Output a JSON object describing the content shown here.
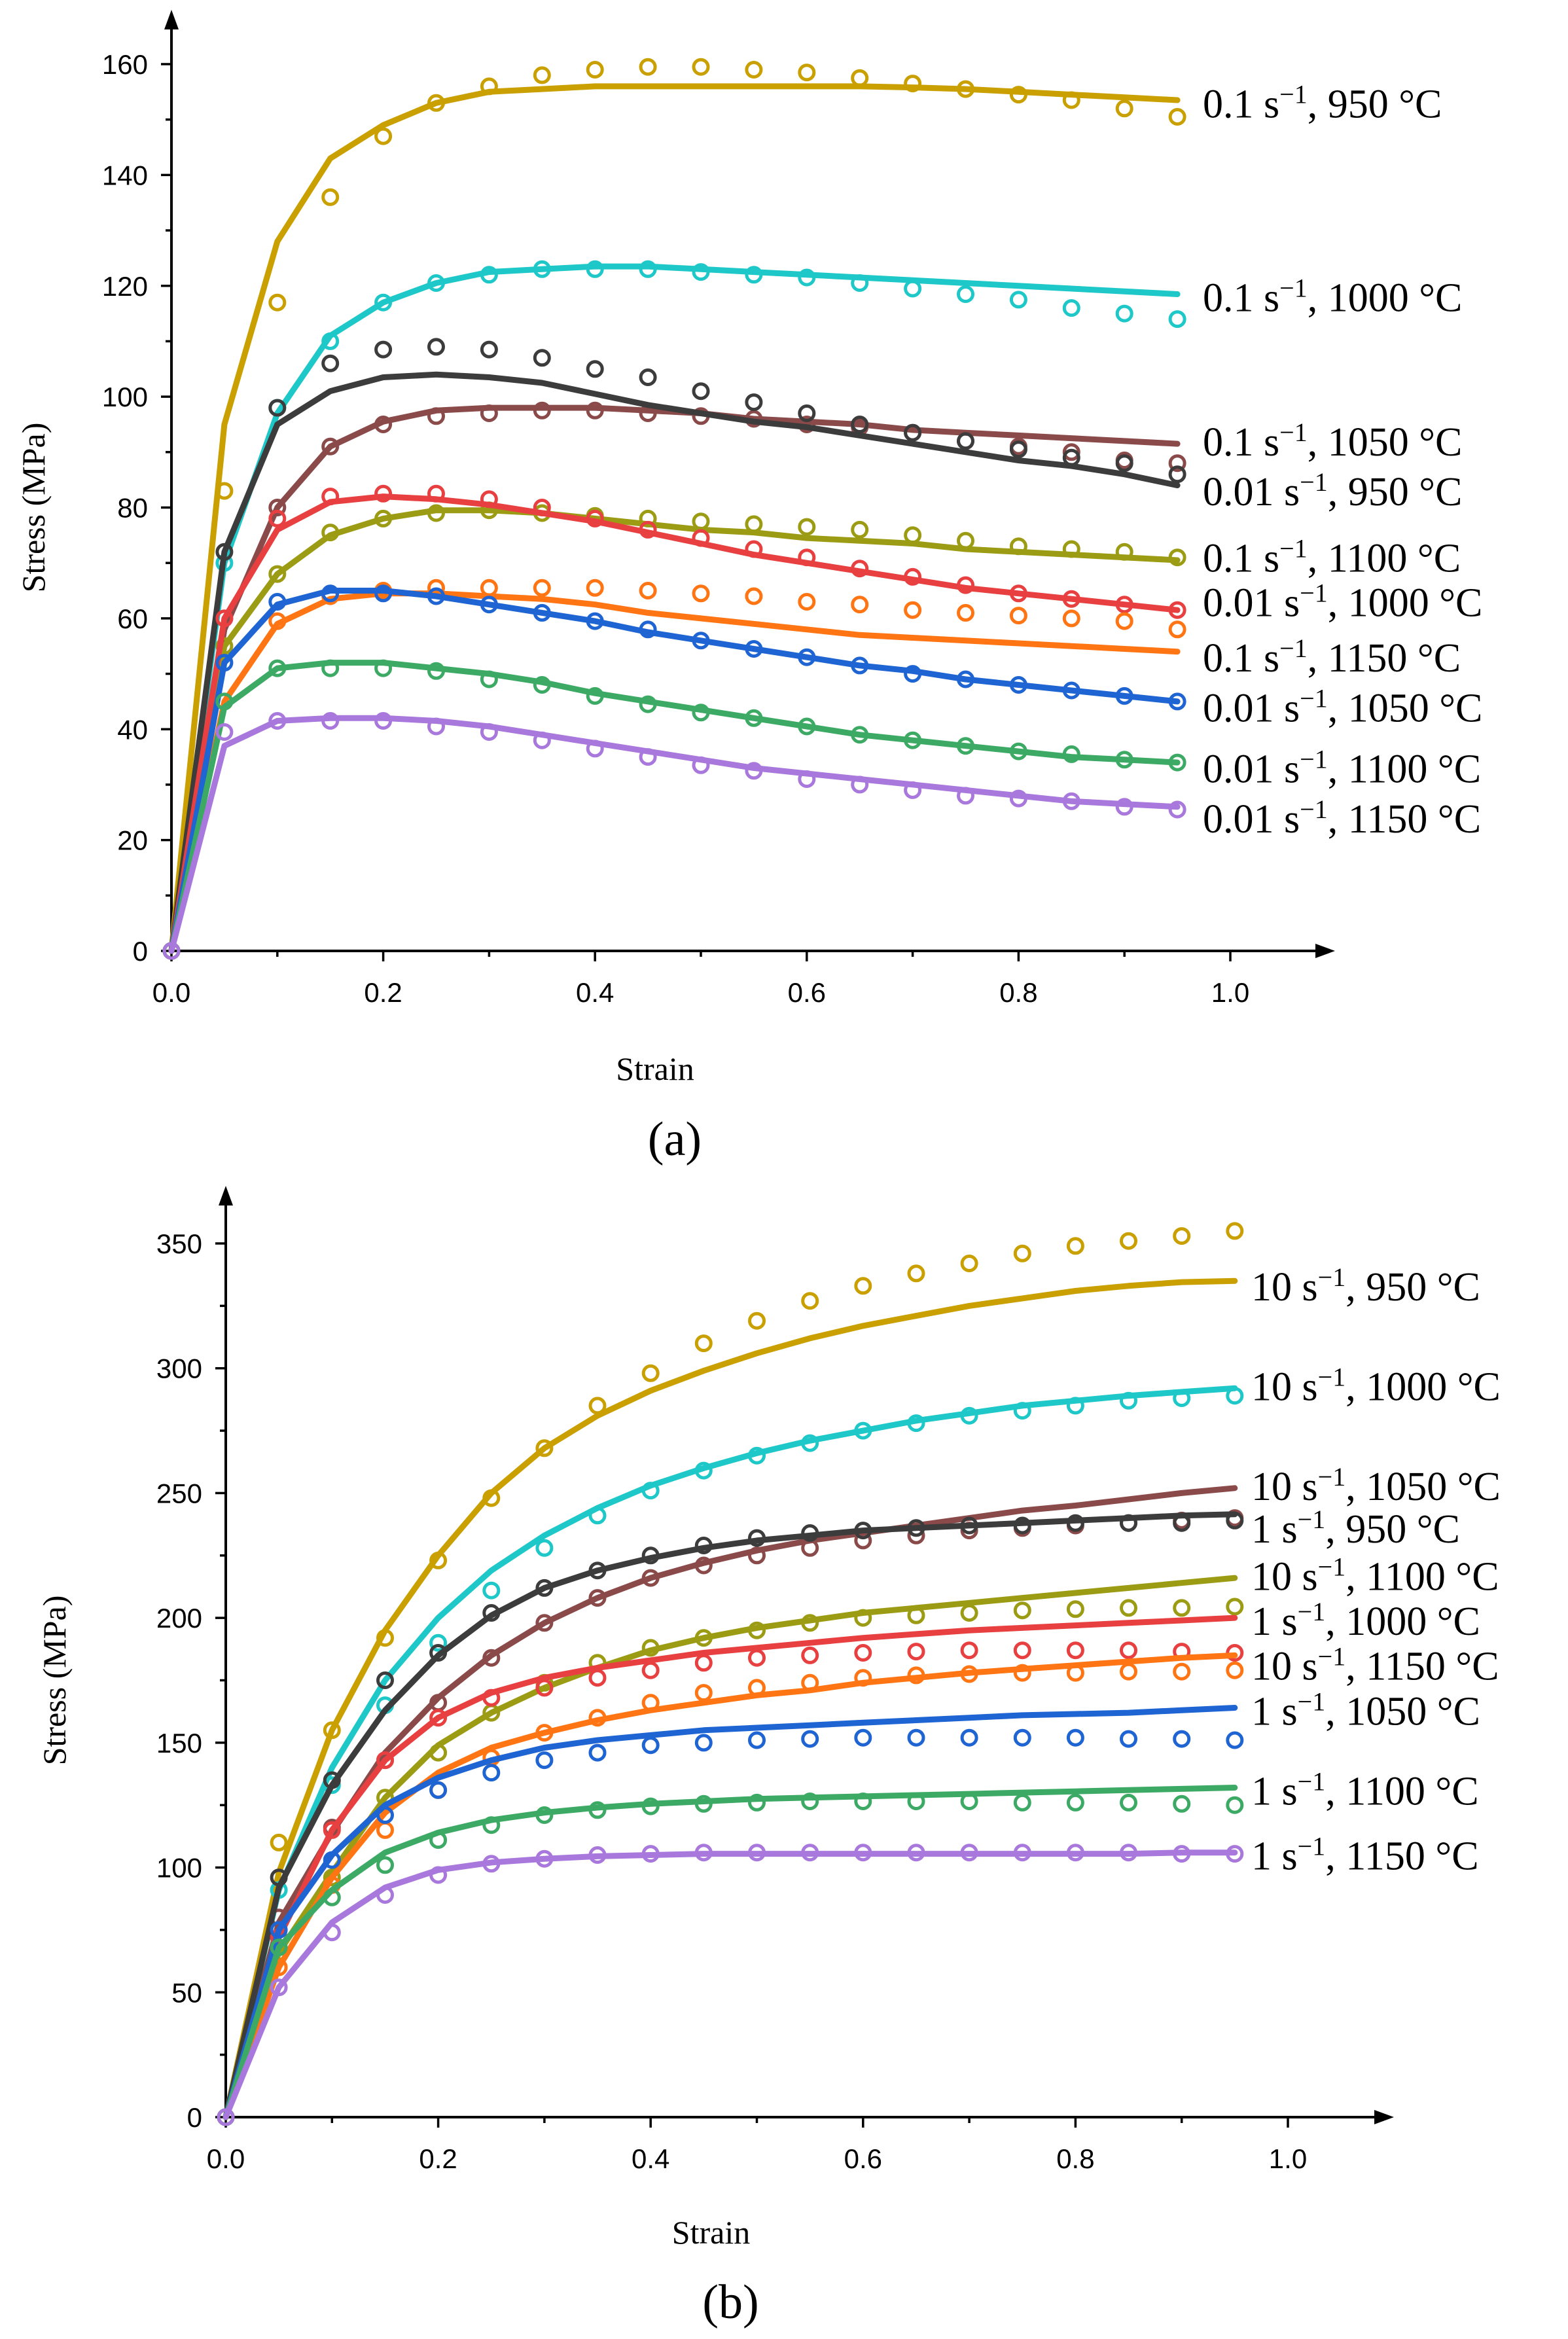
{
  "chart_data": [
    {
      "type": "line",
      "panel_label": "(a)",
      "xlabel": "Strain",
      "ylabel": "Stress (MPa)",
      "xlim": [
        0,
        1.0
      ],
      "ylim": [
        0,
        160
      ],
      "xticks": [
        0,
        0.2,
        0.4,
        0.6,
        0.8,
        1.0
      ],
      "yticks": [
        0,
        20,
        40,
        60,
        80,
        100,
        120,
        140,
        160
      ],
      "xtick_labels": [
        "0.0",
        "0.2",
        "0.4",
        "0.6",
        "0.8",
        "1.0"
      ],
      "ytick_labels": [
        "0",
        "20",
        "40",
        "60",
        "80",
        "100",
        "120",
        "140",
        "160"
      ],
      "exp_x": [
        0,
        0.05,
        0.1,
        0.15,
        0.2,
        0.25,
        0.3,
        0.35,
        0.4,
        0.45,
        0.5,
        0.55,
        0.6,
        0.65,
        0.7,
        0.75,
        0.8,
        0.85,
        0.9,
        0.95
      ],
      "fit_x": [
        0,
        0.05,
        0.1,
        0.15,
        0.2,
        0.25,
        0.3,
        0.35,
        0.4,
        0.45,
        0.5,
        0.55,
        0.6,
        0.65,
        0.7,
        0.75,
        0.8,
        0.85,
        0.9,
        0.95
      ],
      "series": [
        {
          "name": "0.1 s⁻¹, 950 °C",
          "color": "#C9A000",
          "label_y": 153,
          "exp": [
            0,
            83,
            117,
            136,
            147,
            153,
            156,
            158,
            159,
            159.5,
            159.5,
            159,
            158.5,
            157.5,
            156.5,
            155.5,
            154.5,
            153.5,
            152,
            150.5
          ],
          "fit": [
            0,
            95,
            128,
            143,
            149,
            153,
            155,
            155.5,
            156,
            156,
            156,
            156,
            156,
            156,
            155.8,
            155.5,
            155,
            154.5,
            154,
            153.5
          ]
        },
        {
          "name": "0.1 s⁻¹, 1000 °C",
          "color": "#1EC8C8",
          "label_y": 118,
          "exp": [
            0,
            70,
            98,
            110,
            117,
            120.5,
            122,
            123,
            123,
            123,
            122.5,
            122,
            121.5,
            120.5,
            119.5,
            118.5,
            117.5,
            116,
            115,
            114
          ],
          "fit": [
            0,
            70,
            97,
            111,
            117,
            120.5,
            122.5,
            123,
            123.5,
            123.5,
            123,
            122.5,
            122,
            121.5,
            121,
            120.5,
            120,
            119.5,
            119,
            118.5
          ]
        },
        {
          "name": "0.1 s⁻¹, 1050 °C",
          "color": "#8B4A4A",
          "label_y": 92,
          "exp": [
            0,
            60,
            80,
            91,
            95,
            96.5,
            97,
            97.5,
            97.5,
            97,
            96.5,
            96,
            95,
            94.5,
            93.5,
            92,
            91,
            90,
            88.5,
            88
          ],
          "fit": [
            0,
            58,
            80,
            91,
            95.5,
            97.5,
            98,
            98,
            98,
            97.5,
            97,
            96,
            95.5,
            95,
            94,
            93.5,
            93,
            92.5,
            92,
            91.5
          ]
        },
        {
          "name": "0.01 s⁻¹, 950 °C",
          "color": "#3C3C3C",
          "label_y": 83,
          "exp": [
            0,
            72,
            98,
            106,
            108.5,
            109,
            108.5,
            107,
            105,
            103.5,
            101,
            99,
            97,
            95,
            93.5,
            92,
            90.5,
            89,
            88,
            86
          ],
          "fit": [
            0,
            72,
            95,
            101,
            103.5,
            104,
            103.5,
            102.5,
            100.5,
            98.5,
            97,
            95.5,
            94.5,
            93,
            91.5,
            90,
            88.5,
            87.5,
            86,
            84
          ]
        },
        {
          "name": "0.1 s⁻¹, 1100 °C",
          "color": "#9C9C14",
          "label_y": 71,
          "exp": [
            0,
            55,
            68,
            75.5,
            78,
            79,
            79.5,
            79,
            78.5,
            78,
            77.5,
            77,
            76.5,
            76,
            75,
            74,
            73,
            72.5,
            72,
            71
          ],
          "fit": [
            0,
            55,
            68,
            75,
            78,
            79.5,
            79.5,
            79,
            78,
            77,
            76,
            75.5,
            74.5,
            74,
            73.5,
            72.5,
            72,
            71.5,
            71,
            70.5
          ]
        },
        {
          "name": "0.01 s⁻¹, 1000 °C",
          "color": "#E84040",
          "label_y": 63,
          "exp": [
            0,
            60,
            78,
            82,
            82.5,
            82.5,
            81.5,
            80,
            78,
            76,
            74.5,
            72.5,
            71,
            69,
            67.5,
            66,
            64.5,
            63.5,
            62.5,
            61.5
          ],
          "fit": [
            0,
            60,
            76,
            81,
            82,
            81.5,
            80.5,
            79,
            77.5,
            75.5,
            73.5,
            71.5,
            70,
            68.5,
            67,
            65.5,
            64.5,
            63.5,
            62.5,
            61.5
          ]
        },
        {
          "name": "0.1 s⁻¹, 1150 °C",
          "color": "#FF7514",
          "label_y": 53,
          "exp": [
            0,
            45,
            59.5,
            64,
            65,
            65.5,
            65.5,
            65.5,
            65.5,
            65,
            64.5,
            64,
            63,
            62.5,
            61.5,
            61,
            60.5,
            60,
            59.5,
            58
          ],
          "fit": [
            0,
            45,
            59,
            63.5,
            64.5,
            64.5,
            64,
            63.5,
            62.5,
            61,
            60,
            59,
            58,
            57,
            56.5,
            56,
            55.5,
            55,
            54.5,
            54
          ]
        },
        {
          "name": "0.01 s⁻¹, 1050 °C",
          "color": "#1E64D2",
          "label_y": 44,
          "exp": [
            0,
            52,
            63,
            64.5,
            64.5,
            64,
            62.5,
            61,
            59.5,
            58,
            56,
            54.5,
            53,
            51.5,
            50,
            49,
            48,
            47,
            46,
            45
          ],
          "fit": [
            0,
            52,
            62.5,
            65,
            65,
            64,
            62.5,
            61,
            59.5,
            57.5,
            56,
            54.5,
            53,
            51.5,
            50.5,
            49,
            48,
            47,
            46,
            45
          ]
        },
        {
          "name": "0.01 s⁻¹, 1100 °C",
          "color": "#3CAA64",
          "label_y": 33,
          "exp": [
            0,
            45,
            51,
            51,
            51,
            50.5,
            49,
            48,
            46,
            44.5,
            43,
            42,
            40.5,
            39,
            38,
            37,
            36,
            35.5,
            34.5,
            34
          ],
          "fit": [
            0,
            44,
            51,
            52,
            52,
            51,
            50,
            48.5,
            46.5,
            45,
            43.5,
            42,
            40.5,
            39,
            38,
            37,
            36,
            35,
            34.5,
            34
          ]
        },
        {
          "name": "0.01 s⁻¹, 1150 °C",
          "color": "#A878DC",
          "label_y": 24,
          "exp": [
            0,
            39.5,
            41.5,
            41.5,
            41.5,
            40.5,
            39.5,
            38,
            36.5,
            35,
            33.5,
            32.5,
            31,
            30,
            29,
            28,
            27.5,
            27,
            26,
            25.5
          ],
          "fit": [
            0,
            37,
            41.5,
            42,
            42,
            41.5,
            40.5,
            39,
            37.5,
            36,
            34.5,
            33,
            32,
            31,
            30,
            29,
            28,
            27,
            26.5,
            26
          ]
        }
      ]
    },
    {
      "type": "line",
      "panel_label": "(b)",
      "xlabel": "Strain",
      "ylabel": "Stress (MPa)",
      "xlim": [
        0,
        1.0
      ],
      "ylim": [
        0,
        350
      ],
      "xticks": [
        0,
        0.2,
        0.4,
        0.6,
        0.8,
        1.0
      ],
      "yticks": [
        0,
        50,
        100,
        150,
        200,
        250,
        300,
        350
      ],
      "xtick_labels": [
        "0.0",
        "0.2",
        "0.4",
        "0.6",
        "0.8",
        "1.0"
      ],
      "ytick_labels": [
        "0",
        "50",
        "100",
        "150",
        "200",
        "250",
        "300",
        "350"
      ],
      "exp_x": [
        0,
        0.05,
        0.1,
        0.15,
        0.2,
        0.25,
        0.3,
        0.35,
        0.4,
        0.45,
        0.5,
        0.55,
        0.6,
        0.65,
        0.7,
        0.75,
        0.8,
        0.85,
        0.9,
        0.95
      ],
      "fit_x": [
        0,
        0.05,
        0.1,
        0.15,
        0.2,
        0.25,
        0.3,
        0.35,
        0.4,
        0.45,
        0.5,
        0.55,
        0.6,
        0.65,
        0.7,
        0.75,
        0.8,
        0.85,
        0.9,
        0.95
      ],
      "series": [
        {
          "name": "10 s⁻¹, 950 °C",
          "color": "#C9A000",
          "label_y": 333,
          "exp": [
            0,
            110,
            155,
            192,
            223,
            248,
            268,
            285,
            298,
            310,
            319,
            327,
            333,
            338,
            342,
            346,
            349,
            351,
            353,
            355
          ],
          "fit": [
            0,
            98,
            155,
            195,
            225,
            250,
            268,
            281,
            291,
            299,
            306,
            312,
            317,
            321,
            325,
            328,
            331,
            333,
            334.5,
            335
          ]
        },
        {
          "name": "10 s⁻¹, 1000 °C",
          "color": "#1EC8C8",
          "label_y": 293,
          "exp": [
            0,
            91,
            133,
            165,
            190,
            211,
            228,
            241,
            251,
            259,
            265,
            270,
            275,
            278,
            281,
            283,
            285,
            287,
            288,
            289
          ],
          "fit": [
            0,
            91,
            140,
            175,
            200,
            219,
            233,
            244,
            253,
            260,
            266,
            271,
            275,
            279,
            282,
            285,
            287,
            289,
            290.5,
            292
          ]
        },
        {
          "name": "10 s⁻¹, 1050 °C",
          "color": "#8B4A4A",
          "label_y": 253,
          "exp": [
            0,
            80,
            116,
            143,
            166,
            184,
            198,
            208,
            216,
            221,
            225,
            228,
            231,
            233,
            235,
            236,
            237,
            238,
            239,
            240
          ],
          "fit": [
            0,
            78,
            114,
            146,
            168,
            185,
            198,
            208,
            216,
            222,
            227,
            231,
            234,
            237,
            240,
            243,
            245,
            247.5,
            250,
            252
          ]
        },
        {
          "name": "1 s⁻¹, 950 °C",
          "color": "#3C3C3C",
          "label_y": 236,
          "exp": [
            0,
            96,
            135,
            175,
            186,
            202,
            212,
            219,
            225,
            229,
            232,
            234,
            235,
            236,
            237,
            237,
            238,
            238,
            238,
            239
          ],
          "fit": [
            0,
            92,
            133,
            163,
            185,
            201,
            212,
            219,
            224,
            228,
            231,
            233,
            235,
            236,
            237,
            238,
            239,
            240,
            241,
            241.5
          ]
        },
        {
          "name": "10 s⁻¹, 1100 °C",
          "color": "#9C9C14",
          "label_y": 217,
          "exp": [
            0,
            66,
            96,
            128,
            146,
            162,
            174,
            182,
            188,
            192,
            195,
            198,
            200,
            201,
            202,
            203,
            203.5,
            204,
            204,
            204.5
          ],
          "fit": [
            0,
            66,
            98,
            128,
            149,
            162,
            172,
            180,
            187,
            192,
            196,
            199,
            202,
            204,
            206,
            208,
            210,
            212,
            214,
            216
          ]
        },
        {
          "name": "1 s⁻¹, 1000 °C",
          "color": "#E84040",
          "label_y": 199,
          "exp": [
            0,
            72,
            115,
            143,
            160,
            168,
            172,
            176,
            179,
            182,
            184,
            185,
            186,
            186.5,
            187,
            187,
            187,
            187,
            186.5,
            186
          ],
          "fit": [
            0,
            72,
            115,
            143,
            160,
            170,
            176,
            180,
            183,
            186,
            188,
            190,
            192,
            193.5,
            195,
            196,
            197,
            198,
            199,
            200
          ]
        },
        {
          "name": "10 s⁻¹, 1150 °C",
          "color": "#FF7514",
          "label_y": 181,
          "exp": [
            0,
            60,
            93,
            115,
            131,
            144,
            154,
            160,
            166,
            170,
            172,
            174,
            176,
            177,
            177.5,
            178,
            178,
            178.5,
            178.5,
            179
          ],
          "fit": [
            0,
            60,
            96,
            122,
            138,
            148,
            154,
            159,
            163,
            166,
            169,
            171,
            174,
            176,
            178,
            179.5,
            181,
            182.5,
            184,
            185
          ]
        },
        {
          "name": "1 s⁻¹, 1050 °C",
          "color": "#1E64D2",
          "label_y": 163,
          "exp": [
            0,
            75,
            103,
            121,
            131,
            138,
            143,
            146,
            149,
            150,
            151,
            151.5,
            152,
            152,
            152,
            152,
            152,
            151.5,
            151.5,
            151
          ],
          "fit": [
            0,
            75,
            105,
            125,
            136,
            143,
            148,
            151,
            153,
            155,
            156,
            157,
            158,
            159,
            160,
            161,
            161.5,
            162,
            163,
            164
          ]
        },
        {
          "name": "1 s⁻¹, 1100 °C",
          "color": "#3CAA64",
          "label_y": 131,
          "exp": [
            0,
            68,
            88,
            101,
            111,
            117,
            121,
            123,
            124.5,
            125.5,
            126,
            126.5,
            126.5,
            126.5,
            126.5,
            126,
            126,
            126,
            125.5,
            125
          ],
          "fit": [
            0,
            68,
            91,
            106,
            114,
            119,
            122,
            124,
            125.5,
            126.5,
            127.5,
            128,
            128.5,
            129,
            129.5,
            130,
            130.5,
            131,
            131.5,
            132
          ]
        },
        {
          "name": "1 s⁻¹, 1150 °C",
          "color": "#A878DC",
          "label_y": 105,
          "exp": [
            0,
            52,
            74,
            89,
            97,
            101.5,
            103.5,
            105,
            105.5,
            106,
            106,
            106,
            106,
            106,
            106,
            106,
            106,
            106,
            105.5,
            105.5
          ],
          "fit": [
            0,
            52,
            78,
            92,
            99,
            102,
            103.5,
            104.5,
            105,
            105.5,
            105.5,
            105.5,
            105.5,
            105.5,
            105.5,
            105.5,
            105.5,
            105.5,
            106,
            106
          ]
        }
      ]
    }
  ]
}
